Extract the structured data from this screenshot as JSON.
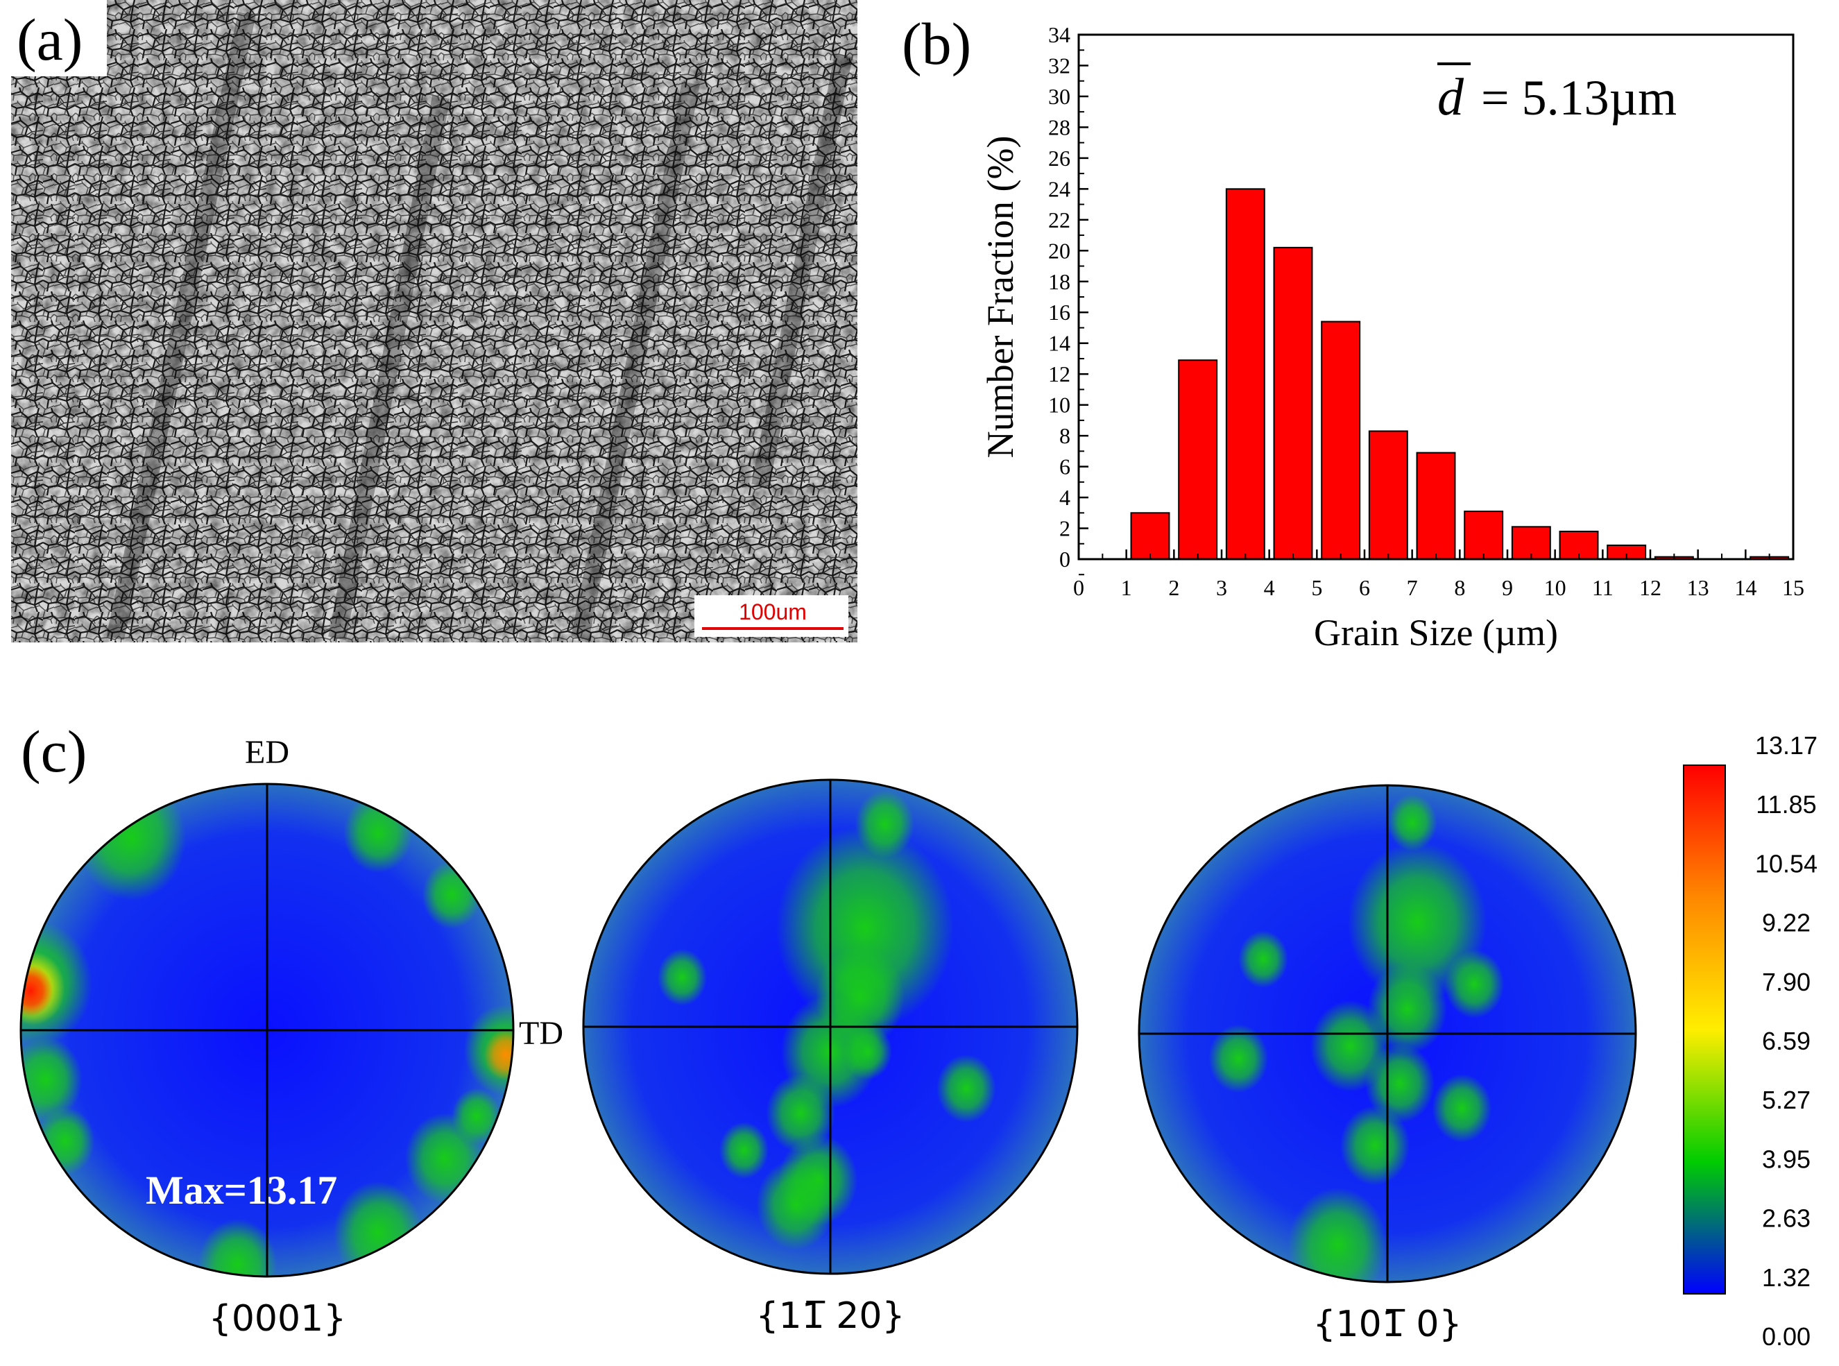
{
  "panels": {
    "a": {
      "label": "(a)",
      "scale_bar_text": "100um",
      "scale_bar_color": "#e00000"
    },
    "b": {
      "label": "(b)"
    },
    "c": {
      "label": "(c)"
    }
  },
  "chart_data": [
    {
      "type": "bar",
      "title": "",
      "annotation": "= 5.13µm",
      "annotation_symbol": "d",
      "xlabel": "Grain Size (µm)",
      "ylabel": "Number Fraction (%)",
      "xlim": [
        0,
        15
      ],
      "ylim": [
        0,
        34
      ],
      "xticks": [
        0,
        1,
        2,
        3,
        4,
        5,
        6,
        7,
        8,
        9,
        10,
        11,
        12,
        13,
        14,
        15
      ],
      "yticks": [
        0,
        2,
        4,
        6,
        8,
        10,
        12,
        14,
        16,
        18,
        20,
        22,
        24,
        26,
        28,
        30,
        32,
        34
      ],
      "bar_color": "#ff0000",
      "bins": [
        {
          "center": 1.5,
          "value": 3.0
        },
        {
          "center": 2.5,
          "value": 12.9
        },
        {
          "center": 3.5,
          "value": 24.0
        },
        {
          "center": 4.5,
          "value": 20.2
        },
        {
          "center": 5.5,
          "value": 15.4
        },
        {
          "center": 6.5,
          "value": 8.3
        },
        {
          "center": 7.5,
          "value": 6.9
        },
        {
          "center": 8.5,
          "value": 3.1
        },
        {
          "center": 9.5,
          "value": 2.1
        },
        {
          "center": 10.5,
          "value": 1.8
        },
        {
          "center": 11.5,
          "value": 0.9
        },
        {
          "center": 12.5,
          "value": 0.15
        },
        {
          "center": 13.5,
          "value": 0.0
        },
        {
          "center": 14.5,
          "value": 0.15
        }
      ]
    },
    {
      "type": "heatmap",
      "subtype": "pole-figure",
      "figures": [
        {
          "label": "{0001}",
          "max_label": "Max=13.17",
          "axis_top": "ED",
          "axis_right": "TD"
        },
        {
          "label": "{11̅ 20}"
        },
        {
          "label": "{101̅ 0}"
        }
      ],
      "colorbar": {
        "ticks": [
          "13.17",
          "11.85",
          "10.54",
          "9.22",
          "7.90",
          "6.59",
          "5.27",
          "3.95",
          "2.63",
          "1.32",
          "0.00"
        ],
        "colors": [
          "#ff0000",
          "#ff8800",
          "#ffee00",
          "#00cc00",
          "#0000ff"
        ]
      }
    }
  ]
}
